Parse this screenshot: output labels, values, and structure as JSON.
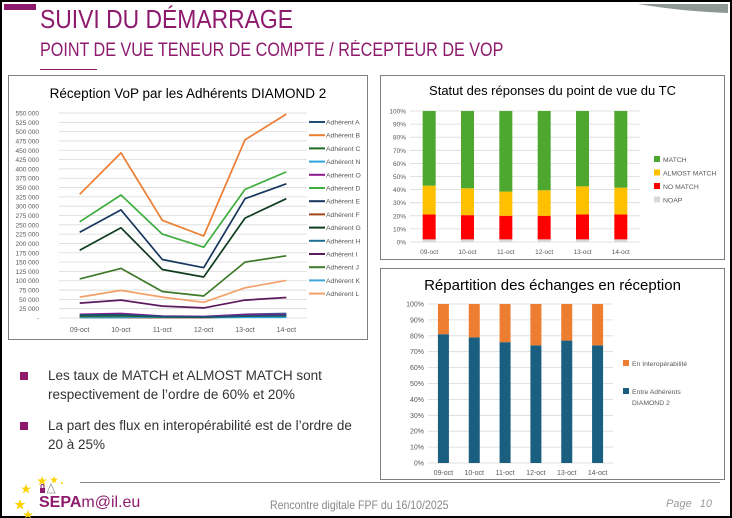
{
  "header": {
    "title": "SUIVI DU DÉMARRAGE",
    "subtitle": "POINT DE VUE TENEUR DE COMPTE / RÉCEPTEUR DE VOP"
  },
  "colors": {
    "brand": "#8e1a6e",
    "match": "#4ea72e",
    "almost_match": "#ffc000",
    "no_match": "#ff0000",
    "noap": "#d9d9d9",
    "interop": "#ed7d31",
    "diamond": "#1a5e80"
  },
  "chart_data": [
    {
      "type": "line",
      "title": "Réception VoP par les Adhérents DIAMOND 2",
      "xlabel": "",
      "ylabel": "",
      "categories": [
        "09-oct",
        "10-oct",
        "11-oct",
        "12-oct",
        "13-oct",
        "14-oct"
      ],
      "ylim": [
        0,
        550000
      ],
      "ytick_labels": [
        "-",
        "25 000",
        "50 000",
        "75 000",
        "100 000",
        "125 000",
        "150 000",
        "175 000",
        "200 000",
        "225 000",
        "250 000",
        "275 000",
        "300 000",
        "325 000",
        "350 000",
        "375 000",
        "400 000",
        "425 000",
        "450 000",
        "475 000",
        "500 000",
        "525 000",
        "550 000"
      ],
      "grid": true,
      "legend_position": "right",
      "series": [
        {
          "name": "Adhérent A",
          "color": "#1f4e79",
          "values": [
            8000,
            9000,
            4000,
            3000,
            6000,
            7000
          ]
        },
        {
          "name": "Adhérent B",
          "color": "#ed7d31",
          "values": [
            332000,
            443000,
            262000,
            220000,
            478000,
            547000
          ]
        },
        {
          "name": "Adhérent C",
          "color": "#1e6b23",
          "values": [
            5000,
            6000,
            3000,
            2000,
            5000,
            6000
          ]
        },
        {
          "name": "Adhérent N",
          "color": "#2ea3dc",
          "values": [
            3000,
            3000,
            2000,
            2000,
            3000,
            3000
          ]
        },
        {
          "name": "Adhérent O",
          "color": "#8e1a8e",
          "values": [
            10000,
            12000,
            5000,
            4000,
            9000,
            10000
          ]
        },
        {
          "name": "Adhérent D",
          "color": "#3fae3f",
          "values": [
            258000,
            330000,
            225000,
            190000,
            345000,
            392000
          ]
        },
        {
          "name": "Adhérent E",
          "color": "#17375e",
          "values": [
            230000,
            290000,
            157000,
            135000,
            320000,
            360000
          ]
        },
        {
          "name": "Adhérent F",
          "color": "#a0461c",
          "values": [
            2000,
            2000,
            1000,
            1000,
            5000,
            7000
          ]
        },
        {
          "name": "Adhérent G",
          "color": "#0f3d20",
          "values": [
            182000,
            242000,
            130000,
            110000,
            268000,
            320000
          ]
        },
        {
          "name": "Adhérent H",
          "color": "#1f6f95",
          "values": [
            6000,
            7000,
            4000,
            3000,
            10000,
            12000
          ]
        },
        {
          "name": "Adhérent I",
          "color": "#5b1a5e",
          "values": [
            40000,
            48000,
            32000,
            27000,
            48000,
            55000
          ]
        },
        {
          "name": "Adhérent J",
          "color": "#3e7a2a",
          "values": [
            105000,
            133000,
            71000,
            59000,
            150000,
            167000
          ]
        },
        {
          "name": "Adhérent K",
          "color": "#3fa8d8",
          "values": [
            1000,
            1000,
            1000,
            1000,
            2000,
            2000
          ]
        },
        {
          "name": "Adhérent L",
          "color": "#f4a06a",
          "values": [
            56000,
            74000,
            56000,
            42000,
            81000,
            101000
          ]
        }
      ]
    },
    {
      "type": "bar",
      "stacked": true,
      "normalized": true,
      "title": "Statut des réponses du point de vue du TC",
      "categories": [
        "09-oct",
        "10-oct",
        "11-oct",
        "12-oct",
        "13-oct",
        "14-oct"
      ],
      "ylim": [
        0,
        100
      ],
      "ytick_labels": [
        "0%",
        "10%",
        "20%",
        "30%",
        "40%",
        "50%",
        "60%",
        "70%",
        "80%",
        "90%",
        "100%"
      ],
      "grid": true,
      "legend_position": "right",
      "legend_order": [
        "MATCH",
        "ALMOST MATCH",
        "NO MATCH",
        "NOAP"
      ],
      "series": [
        {
          "name": "NOAP",
          "color": "#d9d9d9",
          "values": [
            2,
            2,
            2,
            2,
            2,
            2
          ]
        },
        {
          "name": "NO MATCH",
          "color": "#ff0000",
          "values": [
            19,
            18.5,
            18,
            18,
            19,
            19
          ]
        },
        {
          "name": "ALMOST MATCH",
          "color": "#ffc000",
          "values": [
            22,
            20.5,
            18.5,
            19.5,
            21.5,
            20.5
          ]
        },
        {
          "name": "MATCH",
          "color": "#4ea72e",
          "values": [
            57,
            59,
            61.5,
            60.5,
            57.5,
            58.5
          ]
        }
      ]
    },
    {
      "type": "bar",
      "stacked": true,
      "normalized": true,
      "title": "Répartition des échanges en réception",
      "categories": [
        "09-oct",
        "10-oct",
        "11-oct",
        "12-oct",
        "13-oct",
        "14-oct"
      ],
      "ylim": [
        0,
        100
      ],
      "ytick_labels": [
        "0%",
        "10%",
        "20%",
        "30%",
        "40%",
        "50%",
        "60%",
        "70%",
        "80%",
        "90%",
        "100%"
      ],
      "grid": true,
      "legend_position": "right",
      "legend_order": [
        "En Interopérabilité",
        "Entre Adhérents DIAMOND 2"
      ],
      "series": [
        {
          "name": "Entre Adhérents DIAMOND 2",
          "color": "#1a5e80",
          "values": [
            81,
            79,
            76,
            74,
            77,
            74
          ]
        },
        {
          "name": "En Interopérabilité",
          "color": "#ed7d31",
          "values": [
            19,
            21,
            24,
            26,
            23,
            26
          ]
        }
      ]
    }
  ],
  "bullets": [
    "Les taux de MATCH et ALMOST MATCH sont respectivement de l’ordre de 60% et 20%",
    "La part des flux en interopérabilité est de l’ordre de 20 à 25%"
  ],
  "footer": {
    "logo_text_bold": "SEPA",
    "logo_text_rest": "m@il.eu",
    "center": "Rencontre digitale FPF du 16/10/2025",
    "page_label": "Page",
    "page_number": "10"
  }
}
